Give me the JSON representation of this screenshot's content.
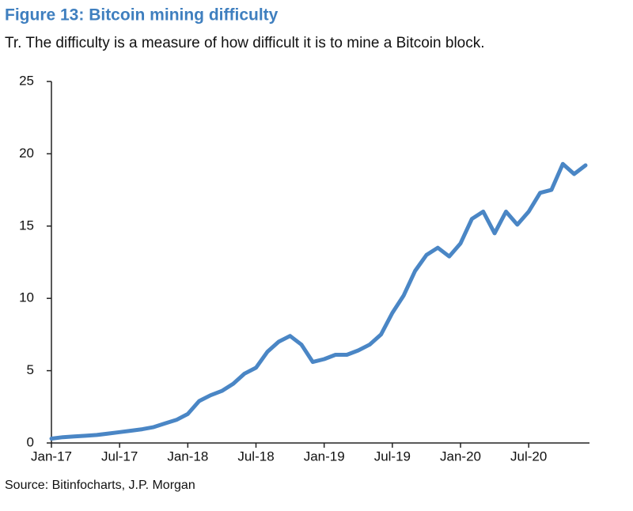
{
  "chart_data": {
    "type": "line",
    "title": "Figure 13: Bitcoin mining difficulty",
    "subtitle": "Tr. The difficulty is a measure of how difficult it is to mine a Bitcoin block.",
    "source": "Source: Bitinfocharts, J.P. Morgan",
    "color": "#4a86c5",
    "x": [
      "2017-01",
      "2017-02",
      "2017-03",
      "2017-04",
      "2017-05",
      "2017-06",
      "2017-07",
      "2017-08",
      "2017-09",
      "2017-10",
      "2017-11",
      "2017-12",
      "2018-01",
      "2018-02",
      "2018-03",
      "2018-04",
      "2018-05",
      "2018-06",
      "2018-07",
      "2018-08",
      "2018-09",
      "2018-10",
      "2018-11",
      "2018-12",
      "2019-01",
      "2019-02",
      "2019-03",
      "2019-04",
      "2019-05",
      "2019-06",
      "2019-07",
      "2019-08",
      "2019-09",
      "2019-10",
      "2019-11",
      "2019-12",
      "2020-01",
      "2020-02",
      "2020-03",
      "2020-04",
      "2020-05",
      "2020-06",
      "2020-07",
      "2020-08",
      "2020-09",
      "2020-10",
      "2020-11",
      "2020-12"
    ],
    "values": [
      0.3,
      0.4,
      0.45,
      0.5,
      0.55,
      0.65,
      0.75,
      0.85,
      0.95,
      1.1,
      1.35,
      1.6,
      2.0,
      2.9,
      3.3,
      3.6,
      4.1,
      4.8,
      5.2,
      6.3,
      7.0,
      7.4,
      6.8,
      5.6,
      5.8,
      6.1,
      6.1,
      6.4,
      6.8,
      7.5,
      9.0,
      10.2,
      11.9,
      13.0,
      13.5,
      12.9,
      13.8,
      15.5,
      16.0,
      14.5,
      16.0,
      15.1,
      16.0,
      17.3,
      17.5,
      19.3,
      18.6,
      19.2
    ],
    "xlim": [
      "2017-01",
      "2020-12"
    ],
    "xticks": [
      {
        "value": "2017-01",
        "label": "Jan-17"
      },
      {
        "value": "2017-07",
        "label": "Jul-17"
      },
      {
        "value": "2018-01",
        "label": "Jan-18"
      },
      {
        "value": "2018-07",
        "label": "Jul-18"
      },
      {
        "value": "2019-01",
        "label": "Jan-19"
      },
      {
        "value": "2019-07",
        "label": "Jul-19"
      },
      {
        "value": "2020-01",
        "label": "Jan-20"
      },
      {
        "value": "2020-07",
        "label": "Jul-20"
      }
    ],
    "ylim": [
      0,
      25
    ],
    "yticks": [
      0,
      5,
      10,
      15,
      20,
      25
    ]
  }
}
